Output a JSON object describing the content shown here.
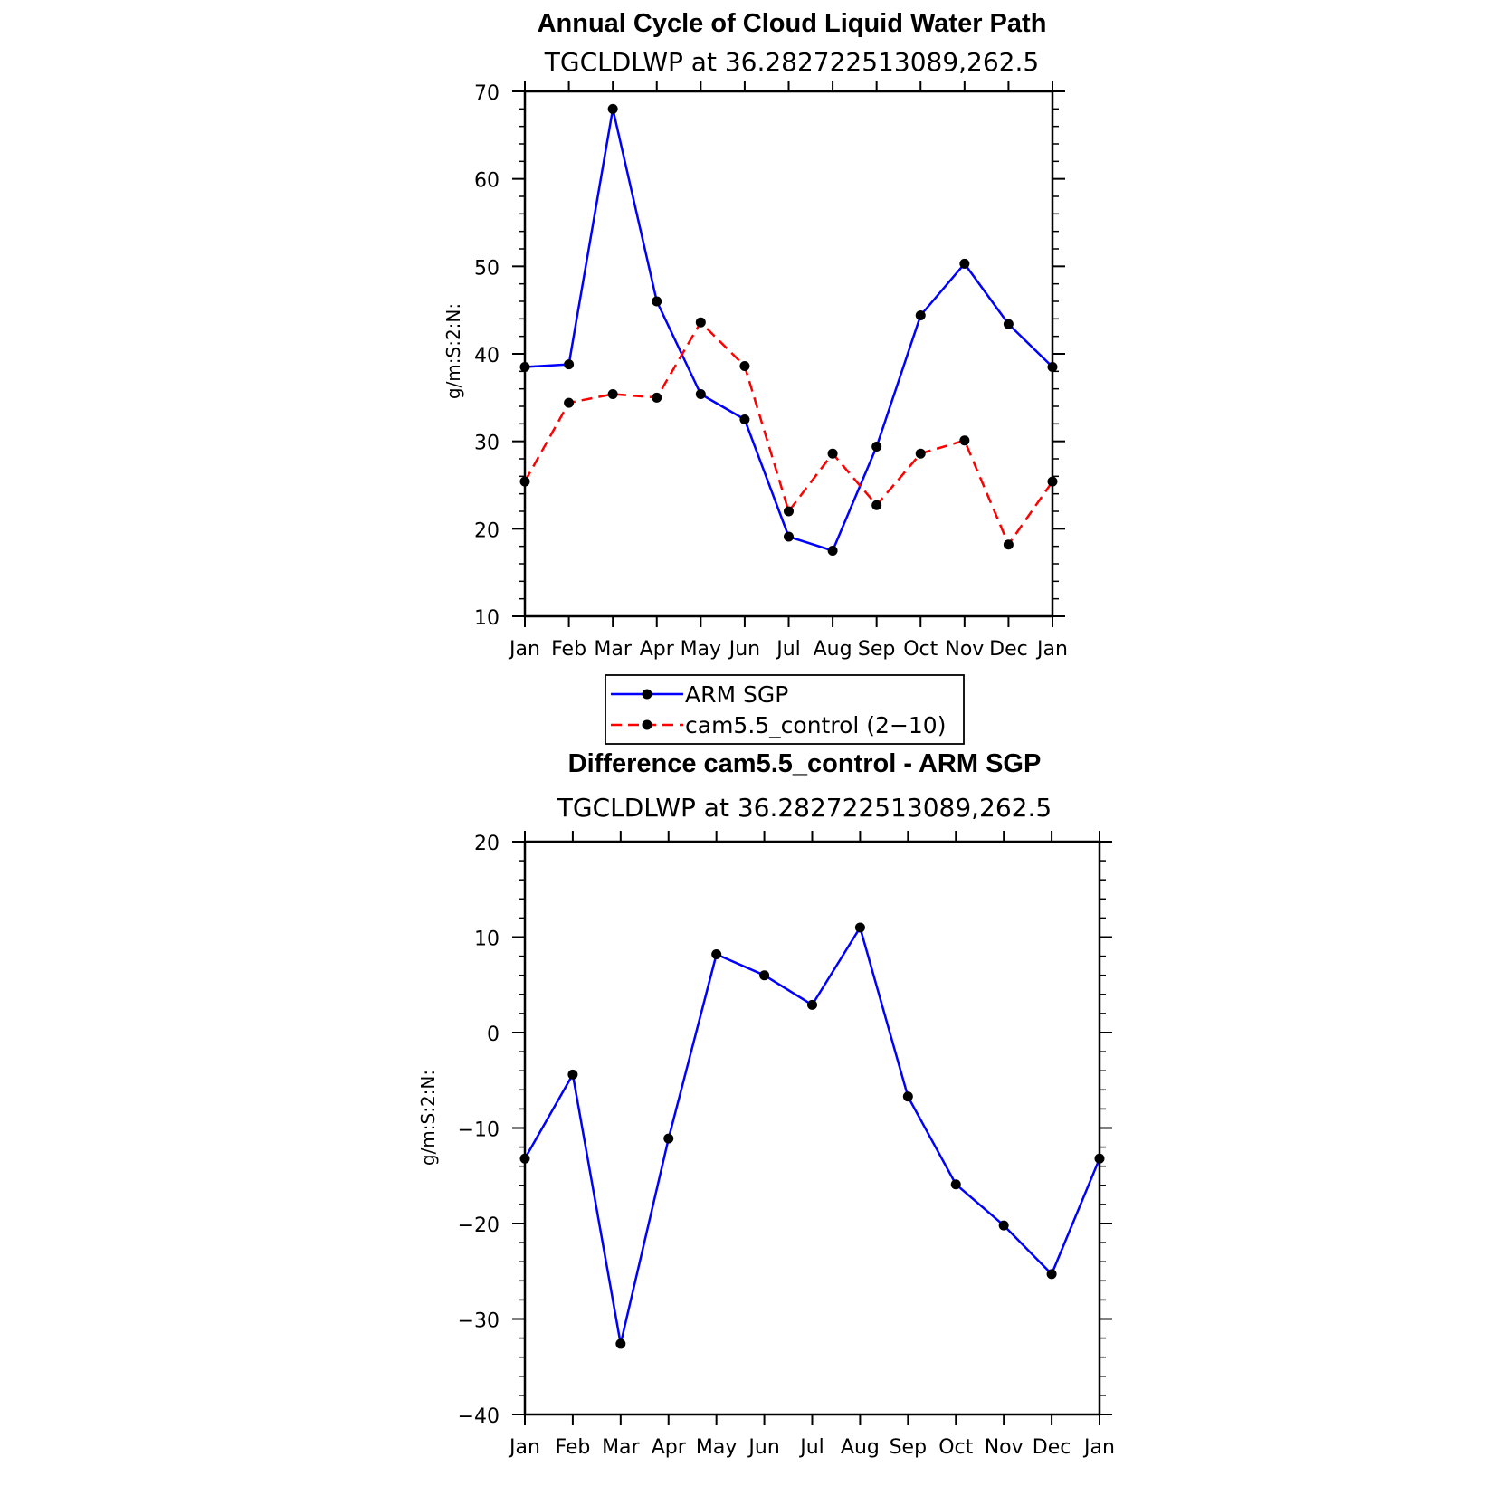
{
  "chart_data": [
    {
      "type": "line",
      "title": "Annual Cycle of Cloud Liquid Water Path",
      "subtitle": "TGCLDLWP at 36.282722513089,262.5",
      "ylabel": "g/m:S:2:N:",
      "xlabel": "",
      "categories": [
        "Jan",
        "Feb",
        "Mar",
        "Apr",
        "May",
        "Jun",
        "Jul",
        "Aug",
        "Sep",
        "Oct",
        "Nov",
        "Dec",
        "Jan"
      ],
      "ylim": [
        10,
        70
      ],
      "yticks": [
        "10",
        "20",
        "30",
        "40",
        "50",
        "60",
        "70"
      ],
      "grid": false,
      "legend_position": "bottom",
      "series": [
        {
          "name": "ARM SGP",
          "color": "#0000ff",
          "dash": "solid",
          "values": [
            38.5,
            38.8,
            68.0,
            46.0,
            35.4,
            32.5,
            19.1,
            17.5,
            29.4,
            44.4,
            50.3,
            43.4,
            38.5
          ]
        },
        {
          "name": "cam5.5_control (2−10)",
          "color": "#ff0000",
          "dash": "dashed",
          "values": [
            25.4,
            34.4,
            35.4,
            35.0,
            43.6,
            38.6,
            22.0,
            28.6,
            22.7,
            28.6,
            30.1,
            18.2,
            25.4
          ]
        }
      ]
    },
    {
      "type": "line",
      "title": "Difference cam5.5_control - ARM SGP",
      "subtitle": "TGCLDLWP at 36.282722513089,262.5",
      "ylabel": "g/m:S:2:N:",
      "xlabel": "",
      "categories": [
        "Jan",
        "Feb",
        "Mar",
        "Apr",
        "May",
        "Jun",
        "Jul",
        "Aug",
        "Sep",
        "Oct",
        "Nov",
        "Dec",
        "Jan"
      ],
      "ylim": [
        -40,
        20
      ],
      "yticks": [
        "−40",
        "−30",
        "−20",
        "−10",
        "0",
        "10",
        "20"
      ],
      "grid": false,
      "series": [
        {
          "name": "",
          "color": "#0000ff",
          "dash": "solid",
          "values": [
            -13.2,
            -4.4,
            -32.6,
            -11.1,
            8.2,
            6.0,
            2.9,
            11.0,
            -6.7,
            -15.9,
            -20.2,
            -25.3,
            -13.2
          ]
        }
      ]
    }
  ]
}
